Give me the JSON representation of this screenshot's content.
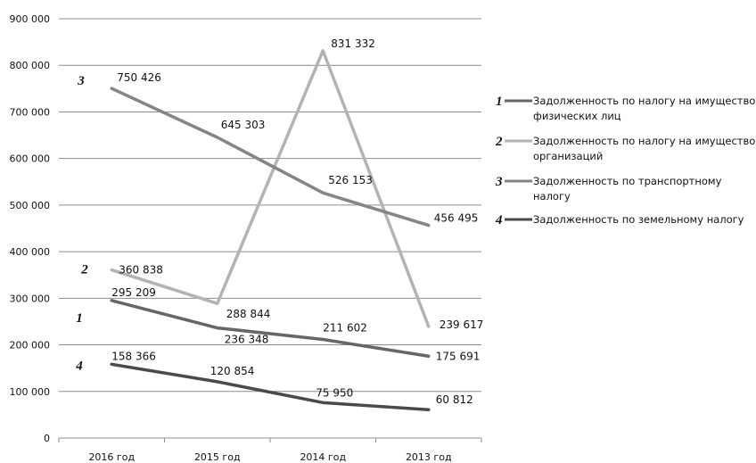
{
  "chart_data": {
    "type": "line",
    "categories": [
      "2016 год",
      "2015 год",
      "2014 год",
      "2013 год"
    ],
    "ylim": [
      0,
      900000
    ],
    "y_ticks": [
      "0",
      "100 000",
      "200 000",
      "300 000",
      "400 000",
      "500 000",
      "600 000",
      "700 000",
      "800 000",
      "900 000"
    ],
    "grid": true,
    "legend_position": "right",
    "series": [
      {
        "number": "1",
        "name": "Задолженность по налогу на имущество физических лиц",
        "name_lines": [
          "Задолженность по налогу на имущество",
          "физических лиц"
        ],
        "color": "#666666",
        "values": [
          295209,
          236348,
          211602,
          175691
        ],
        "labels": [
          "295 209",
          "236 348",
          "211 602",
          "175 691"
        ]
      },
      {
        "number": "2",
        "name": "Задолженность по налогу на имущество организаций",
        "name_lines": [
          "Задолженность по налогу на имущество",
          "организаций"
        ],
        "color": "#b3b3b3",
        "values": [
          360838,
          288844,
          831332,
          239617
        ],
        "labels": [
          "360 838",
          "288 844",
          "831 332",
          "239 617"
        ]
      },
      {
        "number": "3",
        "name": "Задолженность по транспортному налогу",
        "name_lines": [
          "Задолженность по транспортному",
          "налогу"
        ],
        "color": "#858585",
        "values": [
          750426,
          645303,
          526153,
          456495
        ],
        "labels": [
          "750 426",
          "645 303",
          "526 153",
          "456 495"
        ]
      },
      {
        "number": "4",
        "name": "Задолженность по земельному налогу",
        "name_lines": [
          "Задолженность по земельному налогу"
        ],
        "color": "#4a4a4a",
        "values": [
          158366,
          120854,
          75950,
          60812
        ],
        "labels": [
          "158 366",
          "120 854",
          "75 950",
          "60 812"
        ]
      }
    ]
  }
}
